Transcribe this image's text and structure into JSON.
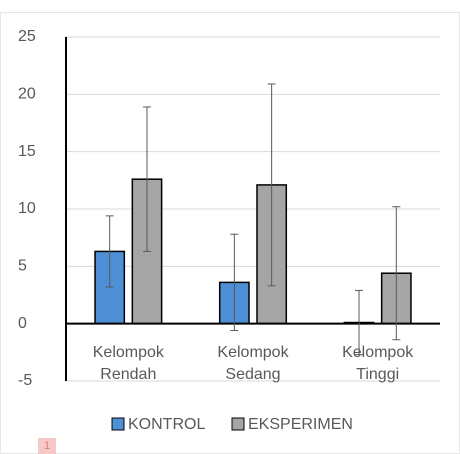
{
  "chart_data": {
    "type": "bar",
    "categories": [
      "Kelompok Rendah",
      "Kelompok Sedang",
      "Kelompok Tinggi"
    ],
    "series": [
      {
        "name": "KONTROL",
        "color": "#4f8fd6",
        "values": [
          6.3,
          3.6,
          0.1
        ],
        "errors": [
          3.1,
          4.2,
          2.8
        ]
      },
      {
        "name": "EKSPERIMEN",
        "color": "#a5a5a5",
        "values": [
          12.6,
          12.1,
          4.4
        ],
        "errors": [
          6.3,
          8.8,
          5.8
        ]
      }
    ],
    "ylim": [
      -5,
      25
    ],
    "yticks": [
      -5,
      0,
      5,
      10,
      15,
      20,
      25
    ],
    "grid": true,
    "legend": "bottom",
    "annotation": "1"
  }
}
